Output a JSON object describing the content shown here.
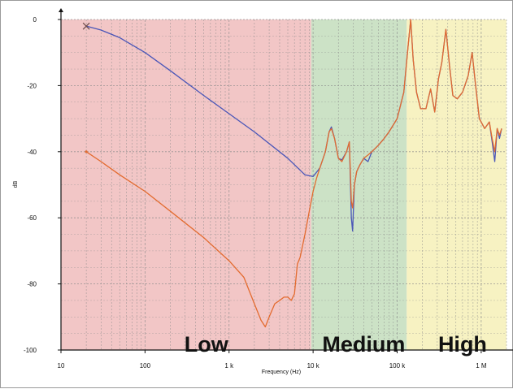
{
  "chart_data": {
    "type": "line",
    "xscale": "log",
    "xlim": [
      10,
      2000000
    ],
    "ylim": [
      -100,
      0
    ],
    "xlabel": "Frequency (Hz)",
    "ylabel": "dB",
    "grid": true,
    "x_ticks": [
      {
        "value": 10,
        "label": "10"
      },
      {
        "value": 100,
        "label": "100"
      },
      {
        "value": 1000,
        "label": "1 k"
      },
      {
        "value": 10000,
        "label": "10 k"
      },
      {
        "value": 100000,
        "label": "100 k"
      },
      {
        "value": 1000000,
        "label": "1 M"
      }
    ],
    "y_ticks": [
      {
        "value": 0,
        "label": "0"
      },
      {
        "value": -20,
        "label": "-20"
      },
      {
        "value": -40,
        "label": "-40"
      },
      {
        "value": -60,
        "label": "-60"
      },
      {
        "value": -80,
        "label": "-80"
      },
      {
        "value": -100,
        "label": "-100"
      }
    ],
    "bands": [
      {
        "label": "Low",
        "from": 10,
        "to": 9500,
        "color": "#f2c6c6"
      },
      {
        "label": "Medium",
        "from": 9500,
        "to": 130000,
        "color": "#cce2c6"
      },
      {
        "label": "High",
        "from": 130000,
        "to": 2000000,
        "color": "#f7f2c2"
      }
    ],
    "series": [
      {
        "color": "#4a56b8",
        "marker": "x",
        "points": [
          [
            20,
            -2
          ],
          [
            30,
            -3.2
          ],
          [
            50,
            -5.5
          ],
          [
            100,
            -10
          ],
          [
            200,
            -15.5
          ],
          [
            500,
            -23
          ],
          [
            1000,
            -28.5
          ],
          [
            2000,
            -34
          ],
          [
            5000,
            -42
          ],
          [
            8000,
            -47
          ],
          [
            10000,
            -47.5
          ],
          [
            12000,
            -45
          ],
          [
            14000,
            -40
          ],
          [
            15500,
            -34
          ],
          [
            16500,
            -32.5
          ],
          [
            18000,
            -36
          ],
          [
            20000,
            -42
          ],
          [
            22000,
            -42.5
          ],
          [
            25000,
            -40
          ],
          [
            27000,
            -37
          ],
          [
            28500,
            -60
          ],
          [
            29500,
            -64
          ],
          [
            31000,
            -50
          ],
          [
            33000,
            -46
          ],
          [
            36000,
            -44
          ],
          [
            40000,
            -42
          ],
          [
            45000,
            -43
          ],
          [
            50000,
            -40
          ],
          [
            60000,
            -38
          ],
          [
            70000,
            -36
          ],
          [
            80000,
            -34
          ],
          [
            100000,
            -30
          ],
          [
            120000,
            -22
          ],
          [
            135000,
            -8
          ],
          [
            145000,
            0
          ],
          [
            155000,
            -12
          ],
          [
            170000,
            -22
          ],
          [
            190000,
            -27
          ],
          [
            220000,
            -27
          ],
          [
            250000,
            -21
          ],
          [
            280000,
            -28
          ],
          [
            310000,
            -18
          ],
          [
            340000,
            -13
          ],
          [
            380000,
            -3
          ],
          [
            420000,
            -14
          ],
          [
            460000,
            -23
          ],
          [
            520000,
            -24
          ],
          [
            600000,
            -22
          ],
          [
            700000,
            -17
          ],
          [
            780000,
            -10
          ],
          [
            850000,
            -19
          ],
          [
            950000,
            -30
          ],
          [
            1100000,
            -33
          ],
          [
            1250000,
            -31
          ],
          [
            1350000,
            -37
          ],
          [
            1450000,
            -43
          ],
          [
            1550000,
            -33
          ],
          [
            1650000,
            -36
          ],
          [
            1750000,
            -33
          ]
        ]
      },
      {
        "color": "#e36b2f",
        "marker": "dot",
        "points": [
          [
            20,
            -40
          ],
          [
            30,
            -43
          ],
          [
            50,
            -47
          ],
          [
            100,
            -52
          ],
          [
            200,
            -58
          ],
          [
            500,
            -66
          ],
          [
            1000,
            -73
          ],
          [
            1500,
            -78
          ],
          [
            2000,
            -86
          ],
          [
            2400,
            -91
          ],
          [
            2700,
            -93
          ],
          [
            3000,
            -90
          ],
          [
            3500,
            -86
          ],
          [
            4000,
            -85
          ],
          [
            4500,
            -84
          ],
          [
            5000,
            -84
          ],
          [
            5500,
            -85
          ],
          [
            6000,
            -83
          ],
          [
            6500,
            -74
          ],
          [
            7000,
            -72
          ],
          [
            8000,
            -65
          ],
          [
            9000,
            -58
          ],
          [
            10000,
            -52
          ],
          [
            11000,
            -48
          ],
          [
            12000,
            -45
          ],
          [
            14000,
            -40
          ],
          [
            15500,
            -34
          ],
          [
            16500,
            -33
          ],
          [
            18000,
            -36
          ],
          [
            20000,
            -42
          ],
          [
            22000,
            -43
          ],
          [
            25000,
            -40
          ],
          [
            27000,
            -37
          ],
          [
            28500,
            -55
          ],
          [
            29500,
            -57
          ],
          [
            31000,
            -50
          ],
          [
            33000,
            -46
          ],
          [
            36000,
            -44
          ],
          [
            40000,
            -42
          ],
          [
            45000,
            -41
          ],
          [
            50000,
            -40
          ],
          [
            60000,
            -38
          ],
          [
            70000,
            -36
          ],
          [
            80000,
            -34
          ],
          [
            100000,
            -30
          ],
          [
            120000,
            -22
          ],
          [
            135000,
            -8
          ],
          [
            145000,
            0
          ],
          [
            155000,
            -12
          ],
          [
            170000,
            -22
          ],
          [
            190000,
            -27
          ],
          [
            220000,
            -27
          ],
          [
            250000,
            -21
          ],
          [
            280000,
            -28
          ],
          [
            310000,
            -18
          ],
          [
            340000,
            -13
          ],
          [
            380000,
            -3
          ],
          [
            420000,
            -14
          ],
          [
            460000,
            -23
          ],
          [
            520000,
            -24
          ],
          [
            600000,
            -22
          ],
          [
            700000,
            -17
          ],
          [
            780000,
            -10
          ],
          [
            850000,
            -19
          ],
          [
            950000,
            -30
          ],
          [
            1100000,
            -33
          ],
          [
            1250000,
            -31
          ],
          [
            1350000,
            -36
          ],
          [
            1450000,
            -40
          ],
          [
            1550000,
            -33
          ],
          [
            1650000,
            -35
          ],
          [
            1750000,
            -33
          ]
        ]
      }
    ]
  }
}
